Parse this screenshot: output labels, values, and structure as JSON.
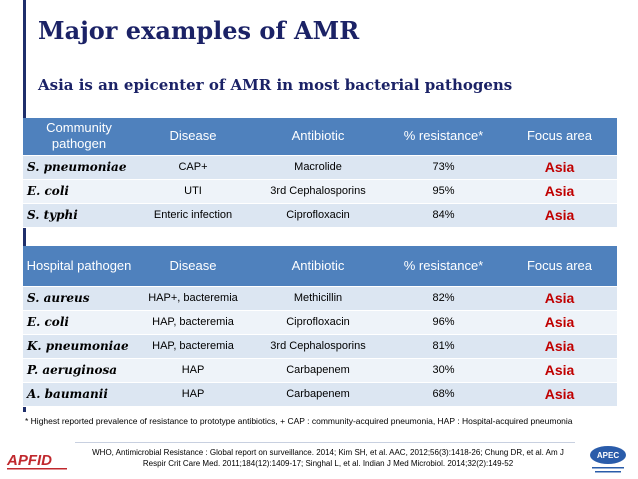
{
  "title": "Major examples of AMR",
  "subtitle": "Asia is an epicenter of AMR in most bacterial pathogens",
  "community_table": {
    "headers": [
      "Community pathogen",
      "Disease",
      "Antibiotic",
      "% resistance*",
      "Focus area"
    ],
    "rows": [
      {
        "pathogen": "S. pneumoniae",
        "disease": "CAP+",
        "antibiotic": "Macrolide",
        "resistance": "73%",
        "focus": "Asia"
      },
      {
        "pathogen": "E. coli",
        "disease": "UTI",
        "antibiotic": "3rd Cephalosporins",
        "resistance": "95%",
        "focus": "Asia"
      },
      {
        "pathogen": "S. typhi",
        "disease": "Enteric infection",
        "antibiotic": "Ciprofloxacin",
        "resistance": "84%",
        "focus": "Asia"
      }
    ]
  },
  "hospital_table": {
    "headers": [
      "Hospital pathogen",
      "Disease",
      "Antibiotic",
      "% resistance*",
      "Focus area"
    ],
    "rows": [
      {
        "pathogen": "S. aureus",
        "disease": "HAP+, bacteremia",
        "antibiotic": "Methicillin",
        "resistance": "82%",
        "focus": "Asia"
      },
      {
        "pathogen": "E. coli",
        "disease": "HAP, bacteremia",
        "antibiotic": "Ciprofloxacin",
        "resistance": "96%",
        "focus": "Asia"
      },
      {
        "pathogen": "K. pneumoniae",
        "disease": "HAP, bacteremia",
        "antibiotic": "3rd Cephalosporins",
        "resistance": "81%",
        "focus": "Asia"
      },
      {
        "pathogen": "P. aeruginosa",
        "disease": "HAP",
        "antibiotic": "Carbapenem",
        "resistance": "30%",
        "focus": "Asia"
      },
      {
        "pathogen": "A. baumanii",
        "disease": "HAP",
        "antibiotic": "Carbapenem",
        "resistance": "68%",
        "focus": "Asia"
      }
    ]
  },
  "footnote": "* Highest reported prevalence of resistance to prototype antibiotics, + CAP : community-acquired pneumonia, HAP : Hospital-acquired pneumonia",
  "references": "WHO, Antimicrobial Resistance : Global report on surveillance. 2014; Kim SH, et al. AAC, 2012;56(3):1418-26; Chung DR, et al. Am J Respir Crit Care Med. 2011;184(12):1409-17; Singhal L, et al. Indian J Med Microbiol. 2014;32(2):149-52",
  "logos": {
    "left": "APFID",
    "right": "APEC"
  },
  "colors": {
    "title": "#1b2266",
    "header_bg": "#4f81bd",
    "row_alt": "#dce6f2",
    "row_norm": "#eef3f9",
    "focus": "#c00000"
  }
}
